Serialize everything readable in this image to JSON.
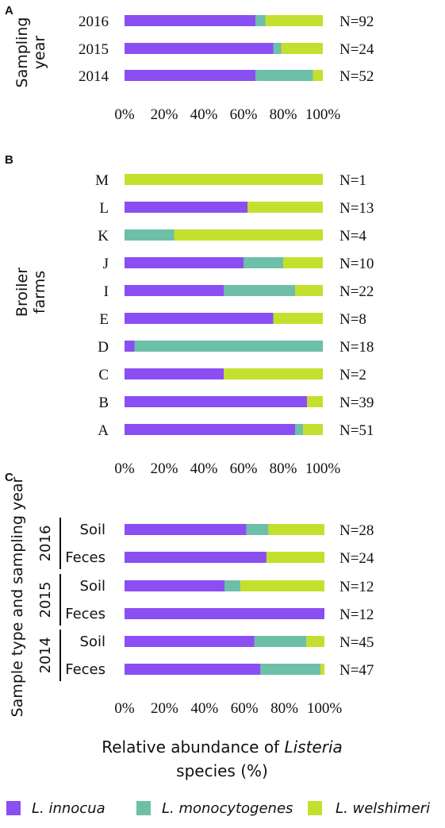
{
  "colors": {
    "L. innocua": "#8a4ef2",
    "L. monocytogenes": "#6dbfa8",
    "L. welshimeri": "#c4e02e"
  },
  "series_names": [
    "L. innocua",
    "L. monocytogenes",
    "L. welshimeri"
  ],
  "x_ticks": [
    "0%",
    "20%",
    "40%",
    "60%",
    "80%",
    "100%"
  ],
  "bottom_title": {
    "part1": "Relative abundance of ",
    "italic": "Listeria",
    "line2": "species (%)"
  },
  "chart_data": [
    {
      "type": "bar",
      "stacked": true,
      "orientation": "horizontal",
      "panel": "A",
      "ylabel_lines": [
        "Sampling",
        "year"
      ],
      "xlim": [
        0,
        100
      ],
      "categories": [
        "2016",
        "2015",
        "2014"
      ],
      "n_labels": [
        "N=92",
        "N=24",
        "N=52"
      ],
      "series": [
        {
          "name": "L. innocua",
          "values": [
            66,
            75,
            66
          ]
        },
        {
          "name": "L. monocytogenes",
          "values": [
            5,
            4,
            29
          ]
        },
        {
          "name": "L. welshimeri",
          "values": [
            29,
            21,
            5
          ]
        }
      ]
    },
    {
      "type": "bar",
      "stacked": true,
      "orientation": "horizontal",
      "panel": "B",
      "ylabel_lines": [
        "Broiler",
        "farms"
      ],
      "xlim": [
        0,
        100
      ],
      "categories": [
        "M",
        "L",
        "K",
        "J",
        "I",
        "E",
        "D",
        "C",
        "B",
        "A"
      ],
      "n_labels": [
        "N=1",
        "N=13",
        "N=4",
        "N=10",
        "N=22",
        "N=8",
        "N=18",
        "N=2",
        "N=39",
        "N=51"
      ],
      "series": [
        {
          "name": "L. innocua",
          "values": [
            0,
            62,
            0,
            60,
            50,
            75,
            5,
            50,
            92,
            86
          ]
        },
        {
          "name": "L. monocytogenes",
          "values": [
            0,
            0,
            25,
            20,
            36,
            0,
            95,
            0,
            0,
            4
          ]
        },
        {
          "name": "L. welshimeri",
          "values": [
            100,
            38,
            75,
            20,
            14,
            25,
            0,
            50,
            8,
            10
          ]
        }
      ]
    },
    {
      "type": "bar",
      "stacked": true,
      "orientation": "horizontal",
      "panel": "C",
      "ylabel": "Sample type and sampling year",
      "xlim": [
        0,
        100
      ],
      "categories": [
        "Soil",
        "Feces",
        "Soil",
        "Feces",
        "Soil",
        "Feces"
      ],
      "groups": [
        {
          "year": "2016",
          "rows": [
            0,
            1
          ]
        },
        {
          "year": "2015",
          "rows": [
            2,
            3
          ]
        },
        {
          "year": "2014",
          "rows": [
            4,
            5
          ]
        }
      ],
      "n_labels": [
        "N=28",
        "N=24",
        "N=12",
        "N=12",
        "N=45",
        "N=47"
      ],
      "series": [
        {
          "name": "L. innocua",
          "values": [
            61,
            71,
            50,
            100,
            65,
            68
          ]
        },
        {
          "name": "L. monocytogenes",
          "values": [
            11,
            0,
            8,
            0,
            26,
            30
          ]
        },
        {
          "name": "L. welshimeri",
          "values": [
            28,
            29,
            42,
            0,
            9,
            2
          ]
        }
      ]
    }
  ]
}
